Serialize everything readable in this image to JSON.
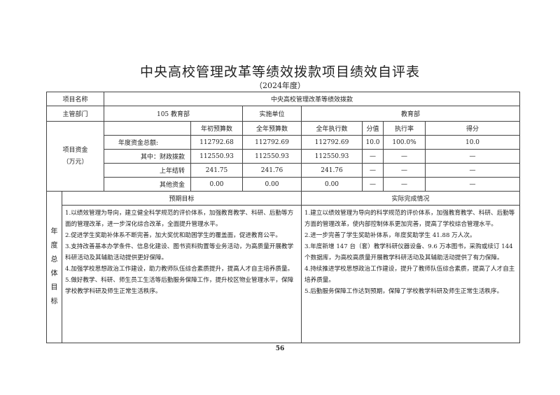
{
  "title": "中央高校管理改革等绩效拨款项目绩效自评表",
  "subtitle": "（2024年度）",
  "project_name_label": "项目名称",
  "project_name": "中央高校管理改革等绩效拨款",
  "dept_label": "主管部门",
  "dept": "105  教育部",
  "impl_label": "实施单位",
  "impl": "教育部",
  "funds_label": "项目资金（万元）",
  "headers": [
    "年初预算数",
    "全年预算数",
    "全年执行数",
    "分值",
    "执行率",
    "得分"
  ],
  "rows": [
    {
      "label": "年度资金总额:",
      "cells": [
        "112792.68",
        "112792.69",
        "112792.69",
        "10.0",
        "100.0%",
        "10.0"
      ]
    },
    {
      "label": "其中：财政拨款",
      "cells": [
        "112550.93",
        "112550.93",
        "112550.93",
        "—",
        "—",
        "—"
      ]
    },
    {
      "label": "上年结转",
      "cells": [
        "241.75",
        "241.76",
        "241.76",
        "—",
        "—",
        "—"
      ]
    },
    {
      "label": "其他资金",
      "cells": [
        "0.00",
        "0.00",
        "0.00",
        "—",
        "—",
        "—"
      ]
    }
  ],
  "goals_label": "年度总体目标",
  "expected_label": "预期目标",
  "actual_label": "实际完成情况",
  "expected": [
    "1.以绩效管理为导向，建立健全科学规范的评价体系，加强教育教学、科研、后勤等方面的管理改革，进一步深化综合改革，全面提升管理水平。",
    "2.促进学生奖助补体系不断完善，加大奖优和助困学生的覆盖面，促进教育公平。",
    "3.支持改善基本办学条件、信息化建设、图书资料购置等业务活动，为高质量开展教学科研活动及其辅助活动提供更好保障。",
    "4.加强学校思想政治工作建设，助力教师队伍综合素质提升，提高人才自主培养质量。",
    "5.做好教学、科研、师生员工生活等后勤服务保障工作，提升校区物业管理水平，保障学校教学科研及师生正常生活秩序。"
  ],
  "actual": [
    "1.建立以绩效管理为导向的科学规范的评价体系，加强教育教学、科研、后勤等方面的管理改革，使内部控制体系更加完善，提高了学校综合管理水平。",
    "2.进一步完善了学生奖助补体系，年度奖助学生 41.88 万人次。",
    "3.年度新增 147 台（套）教学科研仪器设备、9.6 万本图书，采购或续订 144 个数据库，为高校高质量开展教学科研活动及其辅助活动提供了有力保障。",
    "4.持续推进学校思想政治工作建设，提升了教师队伍综合素质，提高了人才自主培养质量。",
    "5.后勤服务保障工作达到预期，保障了学校教学科研及师生正常生活秩序。"
  ],
  "page_number": "56"
}
